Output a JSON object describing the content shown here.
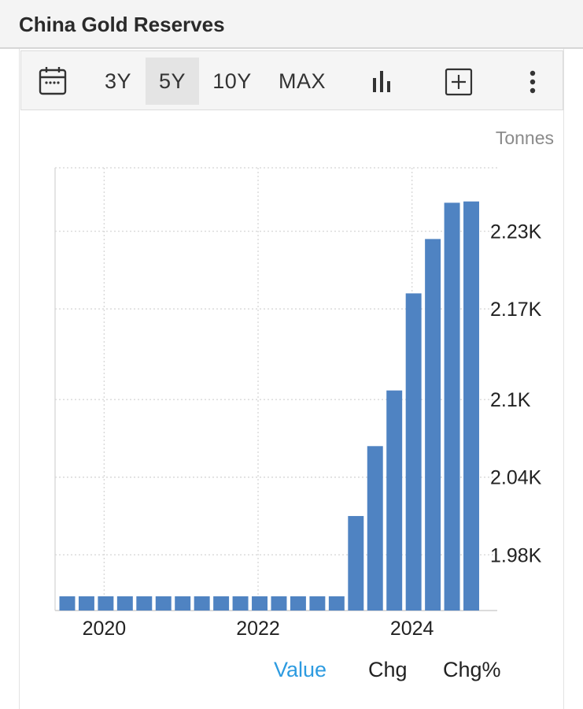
{
  "header": {
    "title": "China Gold Reserves"
  },
  "toolbar": {
    "ranges": [
      "3Y",
      "5Y",
      "10Y",
      "MAX"
    ],
    "active_range": "5Y",
    "icons": [
      "calendar-icon",
      "bar-chart-icon",
      "add-box-icon",
      "more-vertical-icon"
    ]
  },
  "chart": {
    "unit": "Tonnes"
  },
  "chart_data": {
    "type": "bar",
    "title": "China Gold Reserves",
    "ylabel": "Tonnes",
    "x_tick_labels": [
      "2020",
      "2022",
      "2024"
    ],
    "y_tick_labels": [
      "1.98K",
      "2.04K",
      "2.1K",
      "2.17K",
      "2.23K"
    ],
    "y_ticks": [
      1980,
      2040,
      2100,
      2170,
      2230
    ],
    "ylim": [
      1937,
      2279
    ],
    "grid": true,
    "bar_color": "#4f83c2",
    "series": [
      {
        "values": [
          1948,
          1948,
          1948,
          1948,
          1948,
          1948,
          1948,
          1948,
          1948,
          1948,
          1948,
          1948,
          1948,
          1948,
          1948,
          2010,
          2064,
          2107,
          2182,
          2224,
          2252,
          2253
        ]
      }
    ]
  },
  "tabs": {
    "items": [
      "Value",
      "Chg",
      "Chg%"
    ],
    "active": "Value",
    "active_color": "#2d9be0"
  }
}
